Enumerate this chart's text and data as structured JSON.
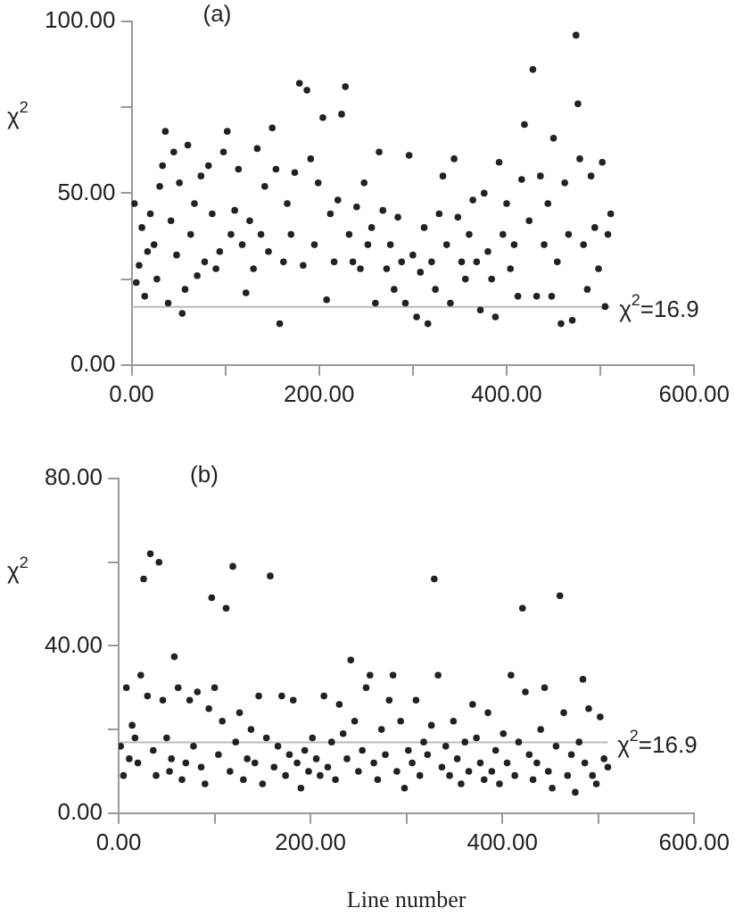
{
  "chart_data": [
    {
      "type": "scatter",
      "ylabel": "χ$^{2}$",
      "annotations": [
        "(a)"
      ],
      "marker": "circle",
      "grid": false,
      "legend": false,
      "xlim": [
        0,
        600
      ],
      "xticks": [
        {
          "value": 0,
          "label": "0.00"
        },
        {
          "value": 100,
          "label": null
        },
        {
          "value": 200,
          "label": "200.00"
        },
        {
          "value": 300,
          "label": null
        },
        {
          "value": 400,
          "label": "400.00"
        },
        {
          "value": 500,
          "label": null
        },
        {
          "value": 600,
          "label": "600.00"
        }
      ],
      "ylim": [
        0,
        100
      ],
      "yticks": [
        {
          "value": 0,
          "label": "0.00"
        },
        {
          "value": 25,
          "label": null
        },
        {
          "value": 50,
          "label": "50.00"
        },
        {
          "value": 75,
          "label": null
        },
        {
          "value": 100,
          "label": "100.00"
        }
      ],
      "ref_lines": [
        {
          "axis": "y",
          "value": 16.9,
          "label": "χ$^{2}$=16.9",
          "color": "#bbbbbb"
        }
      ],
      "series": [
        {
          "color": "#222222",
          "x": [
            3,
            5,
            8,
            11,
            14,
            17,
            20,
            24,
            27,
            30,
            33,
            36,
            39,
            42,
            45,
            48,
            51,
            54,
            57,
            60,
            63,
            67,
            70,
            74,
            78,
            82,
            86,
            90,
            94,
            98,
            102,
            106,
            110,
            114,
            118,
            122,
            126,
            130,
            134,
            138,
            142,
            146,
            150,
            154,
            158,
            162,
            166,
            170,
            174,
            179,
            183,
            187,
            191,
            195,
            199,
            204,
            208,
            212,
            216,
            220,
            224,
            228,
            232,
            236,
            240,
            244,
            248,
            252,
            256,
            260,
            264,
            268,
            272,
            276,
            280,
            284,
            288,
            292,
            296,
            300,
            304,
            308,
            312,
            316,
            320,
            324,
            328,
            332,
            336,
            340,
            344,
            348,
            352,
            356,
            360,
            364,
            368,
            372,
            376,
            380,
            384,
            388,
            392,
            396,
            400,
            404,
            408,
            412,
            416,
            419,
            424,
            428,
            432,
            436,
            440,
            444,
            448,
            450,
            454,
            458,
            462,
            466,
            470,
            474,
            476,
            478,
            482,
            486,
            490,
            494,
            498,
            502,
            505,
            508,
            511
          ],
          "values": [
            47,
            24,
            29,
            40,
            20,
            33,
            44,
            35,
            25,
            52,
            58,
            68,
            18,
            42,
            62,
            32,
            53,
            15,
            22,
            64,
            38,
            47,
            26,
            55,
            30,
            58,
            44,
            28,
            33,
            62,
            68,
            38,
            45,
            57,
            35,
            21,
            42,
            28,
            63,
            38,
            52,
            33,
            69,
            57,
            12,
            30,
            47,
            38,
            56,
            82,
            29,
            80,
            60,
            35,
            53,
            72,
            19,
            44,
            30,
            48,
            73,
            81,
            38,
            30,
            46,
            28,
            53,
            35,
            40,
            18,
            62,
            45,
            28,
            35,
            22,
            43,
            30,
            18,
            61,
            32,
            14,
            27,
            40,
            12,
            30,
            22,
            44,
            55,
            35,
            18,
            60,
            43,
            30,
            25,
            38,
            48,
            30,
            16,
            50,
            33,
            25,
            14,
            59,
            38,
            47,
            28,
            35,
            20,
            54,
            70,
            42,
            86,
            20,
            55,
            35,
            47,
            20,
            66,
            30,
            12,
            53,
            38,
            13,
            96,
            76,
            60,
            35,
            22,
            55,
            40,
            28,
            59,
            17,
            38,
            44
          ]
        }
      ]
    },
    {
      "type": "scatter",
      "ylabel": "χ$^{2}$",
      "xlabel": "Line number",
      "annotations": [
        "(b)"
      ],
      "marker": "circle",
      "grid": false,
      "legend": false,
      "xlim": [
        0,
        600
      ],
      "xticks": [
        {
          "value": 0,
          "label": "0.00"
        },
        {
          "value": 100,
          "label": null
        },
        {
          "value": 200,
          "label": "200.00"
        },
        {
          "value": 300,
          "label": null
        },
        {
          "value": 400,
          "label": "400.00"
        },
        {
          "value": 500,
          "label": null
        },
        {
          "value": 600,
          "label": "600.00"
        }
      ],
      "ylim": [
        0,
        80
      ],
      "yticks": [
        {
          "value": 0,
          "label": "0.00"
        },
        {
          "value": 20,
          "label": null
        },
        {
          "value": 40,
          "label": "40.00"
        },
        {
          "value": 60,
          "label": null
        },
        {
          "value": 80,
          "label": "80.00"
        }
      ],
      "ref_lines": [
        {
          "axis": "y",
          "value": 16.9,
          "label": "χ$^{2}$=16.9",
          "color": "#bbbbbb"
        }
      ],
      "series": [
        {
          "color": "#222222",
          "x": [
            2,
            5,
            8,
            11,
            14,
            17,
            20,
            23,
            26,
            30,
            33,
            36,
            39,
            42,
            46,
            50,
            53,
            55,
            58,
            62,
            66,
            70,
            74,
            78,
            82,
            86,
            90,
            94,
            97,
            100,
            104,
            108,
            112,
            116,
            119,
            122,
            126,
            130,
            134,
            138,
            142,
            146,
            150,
            154,
            158,
            162,
            166,
            170,
            174,
            178,
            182,
            186,
            190,
            194,
            198,
            202,
            206,
            210,
            214,
            218,
            222,
            226,
            230,
            234,
            238,
            242,
            246,
            250,
            254,
            258,
            262,
            266,
            270,
            274,
            278,
            282,
            286,
            290,
            294,
            298,
            302,
            306,
            310,
            314,
            318,
            322,
            326,
            329,
            333,
            337,
            341,
            345,
            349,
            353,
            357,
            361,
            365,
            369,
            373,
            377,
            381,
            385,
            389,
            393,
            397,
            401,
            405,
            409,
            413,
            417,
            421,
            424,
            428,
            432,
            436,
            440,
            444,
            448,
            452,
            456,
            460,
            464,
            468,
            472,
            476,
            480,
            484,
            486,
            490,
            494,
            498,
            502,
            506,
            510
          ],
          "values": [
            16,
            9,
            30,
            13,
            21,
            18,
            12,
            33,
            56,
            28,
            62,
            15,
            9,
            60,
            27,
            18,
            10,
            13,
            37.4,
            30,
            8,
            12,
            27,
            16,
            29,
            11,
            7,
            25,
            51.5,
            30,
            14,
            22,
            49,
            10,
            59,
            17,
            24,
            8,
            13,
            20,
            12,
            28,
            7,
            18,
            56.7,
            11,
            16,
            28,
            9,
            14,
            27,
            12,
            6,
            15,
            10,
            18,
            13,
            9,
            28,
            11,
            17,
            8,
            26,
            19,
            13,
            36.6,
            22,
            10,
            15,
            30,
            33,
            12,
            8,
            20,
            14,
            27,
            33,
            10,
            22,
            6,
            15,
            12,
            27,
            9,
            17,
            14,
            21,
            56,
            33,
            11,
            16,
            9,
            22,
            13,
            7,
            17,
            10,
            26,
            18,
            12,
            8,
            24,
            10,
            15,
            7,
            19,
            12,
            33,
            9,
            17,
            49,
            29,
            14,
            8,
            12,
            20,
            30,
            10,
            6,
            16,
            52,
            24,
            9,
            14,
            5,
            17,
            32,
            12,
            25,
            9,
            7,
            23,
            13,
            11
          ]
        }
      ]
    }
  ]
}
